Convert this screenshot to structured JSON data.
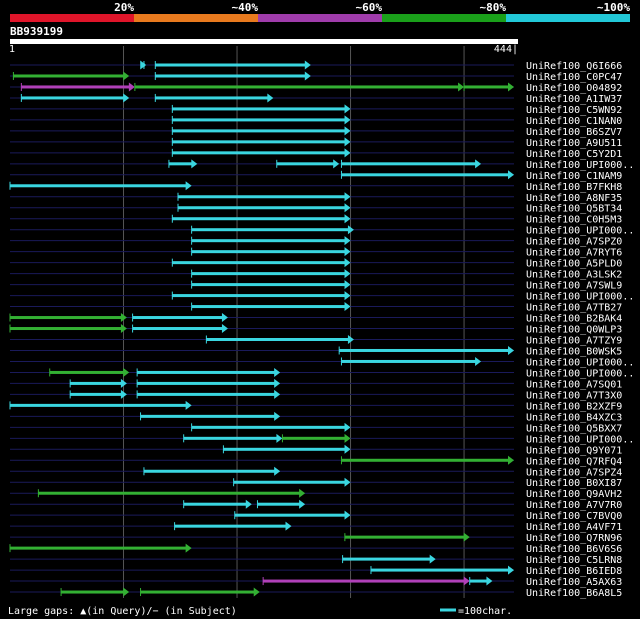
{
  "colors": {
    "background": "#000000",
    "grid": "#555555",
    "row_line": "#1a1a5a",
    "legend_red": "#e0152a",
    "legend_orange": "#e87a1e",
    "legend_purple": "#a03cab",
    "legend_green": "#1aa01a",
    "legend_cyan": "#22c8d8",
    "query_bar": "#ffffff",
    "hit_cyan": "#3ad6e0",
    "hit_green": "#33b033",
    "hit_purple": "#b040b8"
  },
  "legend_labels": [
    "20%",
    "~40%",
    "~60%",
    "~80%",
    "~100%"
  ],
  "query": {
    "name": "BB939199",
    "start_label": "1",
    "end_label": "444|"
  },
  "footer": {
    "gaps_label": "Large gaps: ▲(in Query)/− (in Subject)",
    "scale_label": "=100char."
  },
  "chart_data": {
    "type": "blast-alignment-overview",
    "query_length": 444,
    "identity_bins": [
      "20%",
      "~40%",
      "~60%",
      "~80%",
      "~100%"
    ],
    "hits": [
      {
        "label": "UniRef100_Q6I666",
        "segs": [
          [
            118,
            120,
            "cyan"
          ],
          [
            128,
            265,
            "cyan"
          ]
        ]
      },
      {
        "label": "UniRef100_C0PC47",
        "segs": [
          [
            3,
            105,
            "green"
          ],
          [
            128,
            265,
            "cyan"
          ]
        ]
      },
      {
        "label": "UniRef100_O04892",
        "segs": [
          [
            10,
            110,
            "purple"
          ],
          [
            110,
            400,
            "green"
          ],
          [
            400,
            444,
            "green"
          ]
        ]
      },
      {
        "label": "UniRef100_A1IW37",
        "segs": [
          [
            10,
            105,
            "cyan"
          ],
          [
            128,
            232,
            "cyan"
          ]
        ]
      },
      {
        "label": "UniRef100_C5WN92",
        "segs": [
          [
            143,
            300,
            "cyan"
          ]
        ]
      },
      {
        "label": "UniRef100_C1NAN0",
        "segs": [
          [
            143,
            300,
            "cyan"
          ]
        ]
      },
      {
        "label": "UniRef100_B6SZV7",
        "segs": [
          [
            143,
            300,
            "cyan"
          ]
        ]
      },
      {
        "label": "UniRef100_A9U511",
        "segs": [
          [
            143,
            300,
            "cyan"
          ]
        ]
      },
      {
        "label": "UniRef100_C5Y2D1",
        "segs": [
          [
            143,
            300,
            "cyan"
          ]
        ]
      },
      {
        "label": "UniRef100_UPI000..",
        "segs": [
          [
            140,
            165,
            "cyan"
          ],
          [
            235,
            290,
            "cyan"
          ],
          [
            292,
            415,
            "cyan"
          ]
        ]
      },
      {
        "label": "UniRef100_C1NAM9",
        "segs": [
          [
            292,
            444,
            "cyan"
          ]
        ]
      },
      {
        "label": "UniRef100_B7FKH8",
        "segs": [
          [
            0,
            160,
            "cyan"
          ]
        ]
      },
      {
        "label": "UniRef100_A8NF35",
        "segs": [
          [
            148,
            300,
            "cyan"
          ]
        ]
      },
      {
        "label": "UniRef100_Q5BT34",
        "segs": [
          [
            148,
            300,
            "cyan"
          ]
        ]
      },
      {
        "label": "UniRef100_C0H5M3",
        "segs": [
          [
            143,
            300,
            "cyan"
          ]
        ]
      },
      {
        "label": "UniRef100_UPI000..",
        "segs": [
          [
            160,
            303,
            "cyan"
          ]
        ]
      },
      {
        "label": "UniRef100_A7SPZ0",
        "segs": [
          [
            160,
            300,
            "cyan"
          ]
        ]
      },
      {
        "label": "UniRef100_A7RYT6",
        "segs": [
          [
            160,
            300,
            "cyan"
          ]
        ]
      },
      {
        "label": "UniRef100_A5PLD0",
        "segs": [
          [
            143,
            300,
            "cyan"
          ]
        ]
      },
      {
        "label": "UniRef100_A3LSK2",
        "segs": [
          [
            160,
            300,
            "cyan"
          ]
        ]
      },
      {
        "label": "UniRef100_A7SWL9",
        "segs": [
          [
            160,
            300,
            "cyan"
          ]
        ]
      },
      {
        "label": "UniRef100_UPI000..",
        "segs": [
          [
            143,
            300,
            "cyan"
          ]
        ]
      },
      {
        "label": "UniRef100_A7TB27",
        "segs": [
          [
            160,
            300,
            "cyan"
          ]
        ]
      },
      {
        "label": "UniRef100_B2BAK4",
        "segs": [
          [
            0,
            103,
            "green"
          ],
          [
            108,
            192,
            "cyan"
          ]
        ]
      },
      {
        "label": "UniRef100_Q0WLP3",
        "segs": [
          [
            0,
            103,
            "green"
          ],
          [
            108,
            192,
            "cyan"
          ]
        ]
      },
      {
        "label": "UniRef100_A7TZY9",
        "segs": [
          [
            173,
            303,
            "cyan"
          ]
        ]
      },
      {
        "label": "UniRef100_B0WSK5",
        "segs": [
          [
            290,
            444,
            "cyan"
          ]
        ]
      },
      {
        "label": "UniRef100_UPI000..",
        "segs": [
          [
            292,
            415,
            "cyan"
          ]
        ]
      },
      {
        "label": "UniRef100_UPI000..",
        "segs": [
          [
            35,
            105,
            "green"
          ],
          [
            112,
            238,
            "cyan"
          ]
        ]
      },
      {
        "label": "UniRef100_A7SQ01",
        "segs": [
          [
            53,
            103,
            "cyan"
          ],
          [
            112,
            238,
            "cyan"
          ]
        ]
      },
      {
        "label": "UniRef100_A7T3X0",
        "segs": [
          [
            53,
            103,
            "cyan"
          ],
          [
            112,
            238,
            "cyan"
          ]
        ]
      },
      {
        "label": "UniRef100_B2XZF9",
        "segs": [
          [
            0,
            160,
            "cyan"
          ]
        ]
      },
      {
        "label": "UniRef100_B4XZC3",
        "segs": [
          [
            115,
            238,
            "cyan"
          ]
        ]
      },
      {
        "label": "UniRef100_Q5BXX7",
        "segs": [
          [
            160,
            300,
            "cyan"
          ]
        ]
      },
      {
        "label": "UniRef100_UPI000..",
        "segs": [
          [
            153,
            240,
            "cyan"
          ],
          [
            240,
            300,
            "green"
          ]
        ]
      },
      {
        "label": "UniRef100_Q9Y071",
        "segs": [
          [
            188,
            300,
            "cyan"
          ]
        ]
      },
      {
        "label": "UniRef100_Q7RFQ4",
        "segs": [
          [
            292,
            444,
            "green"
          ]
        ]
      },
      {
        "label": "UniRef100_A7SPZ4",
        "segs": [
          [
            118,
            238,
            "cyan"
          ]
        ]
      },
      {
        "label": "UniRef100_B0XI87",
        "segs": [
          [
            197,
            300,
            "cyan"
          ]
        ]
      },
      {
        "label": "UniRef100_Q9AVH2",
        "segs": [
          [
            25,
            260,
            "green"
          ]
        ]
      },
      {
        "label": "UniRef100_A7V7R0",
        "segs": [
          [
            153,
            213,
            "cyan"
          ],
          [
            218,
            260,
            "cyan"
          ]
        ]
      },
      {
        "label": "UniRef100_C7BVQ0",
        "segs": [
          [
            198,
            300,
            "cyan"
          ]
        ]
      },
      {
        "label": "UniRef100_A4VF71",
        "segs": [
          [
            145,
            248,
            "cyan"
          ]
        ]
      },
      {
        "label": "UniRef100_Q7RN96",
        "segs": [
          [
            295,
            405,
            "green"
          ]
        ]
      },
      {
        "label": "UniRef100_B6V6S6",
        "segs": [
          [
            0,
            160,
            "green"
          ]
        ]
      },
      {
        "label": "UniRef100_C5LRN8",
        "segs": [
          [
            293,
            375,
            "cyan"
          ]
        ]
      },
      {
        "label": "UniRef100_B6IED8",
        "segs": [
          [
            318,
            444,
            "cyan"
          ]
        ]
      },
      {
        "label": "UniRef100_A5AX63",
        "segs": [
          [
            223,
            405,
            "purple"
          ],
          [
            405,
            425,
            "cyan"
          ]
        ]
      },
      {
        "label": "UniRef100_B6A8L5",
        "segs": [
          [
            45,
            105,
            "green"
          ],
          [
            115,
            220,
            "green"
          ]
        ]
      }
    ]
  }
}
